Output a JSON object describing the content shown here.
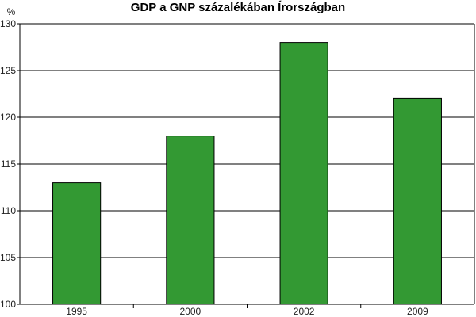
{
  "chart_data": {
    "type": "bar",
    "title": "GDP a GNP százalékában Írországban",
    "ylabel": "%",
    "xlabel": "",
    "categories": [
      "1995",
      "2000",
      "2002",
      "2009"
    ],
    "values": [
      113,
      118,
      128,
      122
    ],
    "ylim": [
      100,
      130
    ],
    "yticks": [
      100,
      105,
      110,
      115,
      120,
      125,
      130
    ],
    "grid": true,
    "bar_color": "#339933"
  }
}
